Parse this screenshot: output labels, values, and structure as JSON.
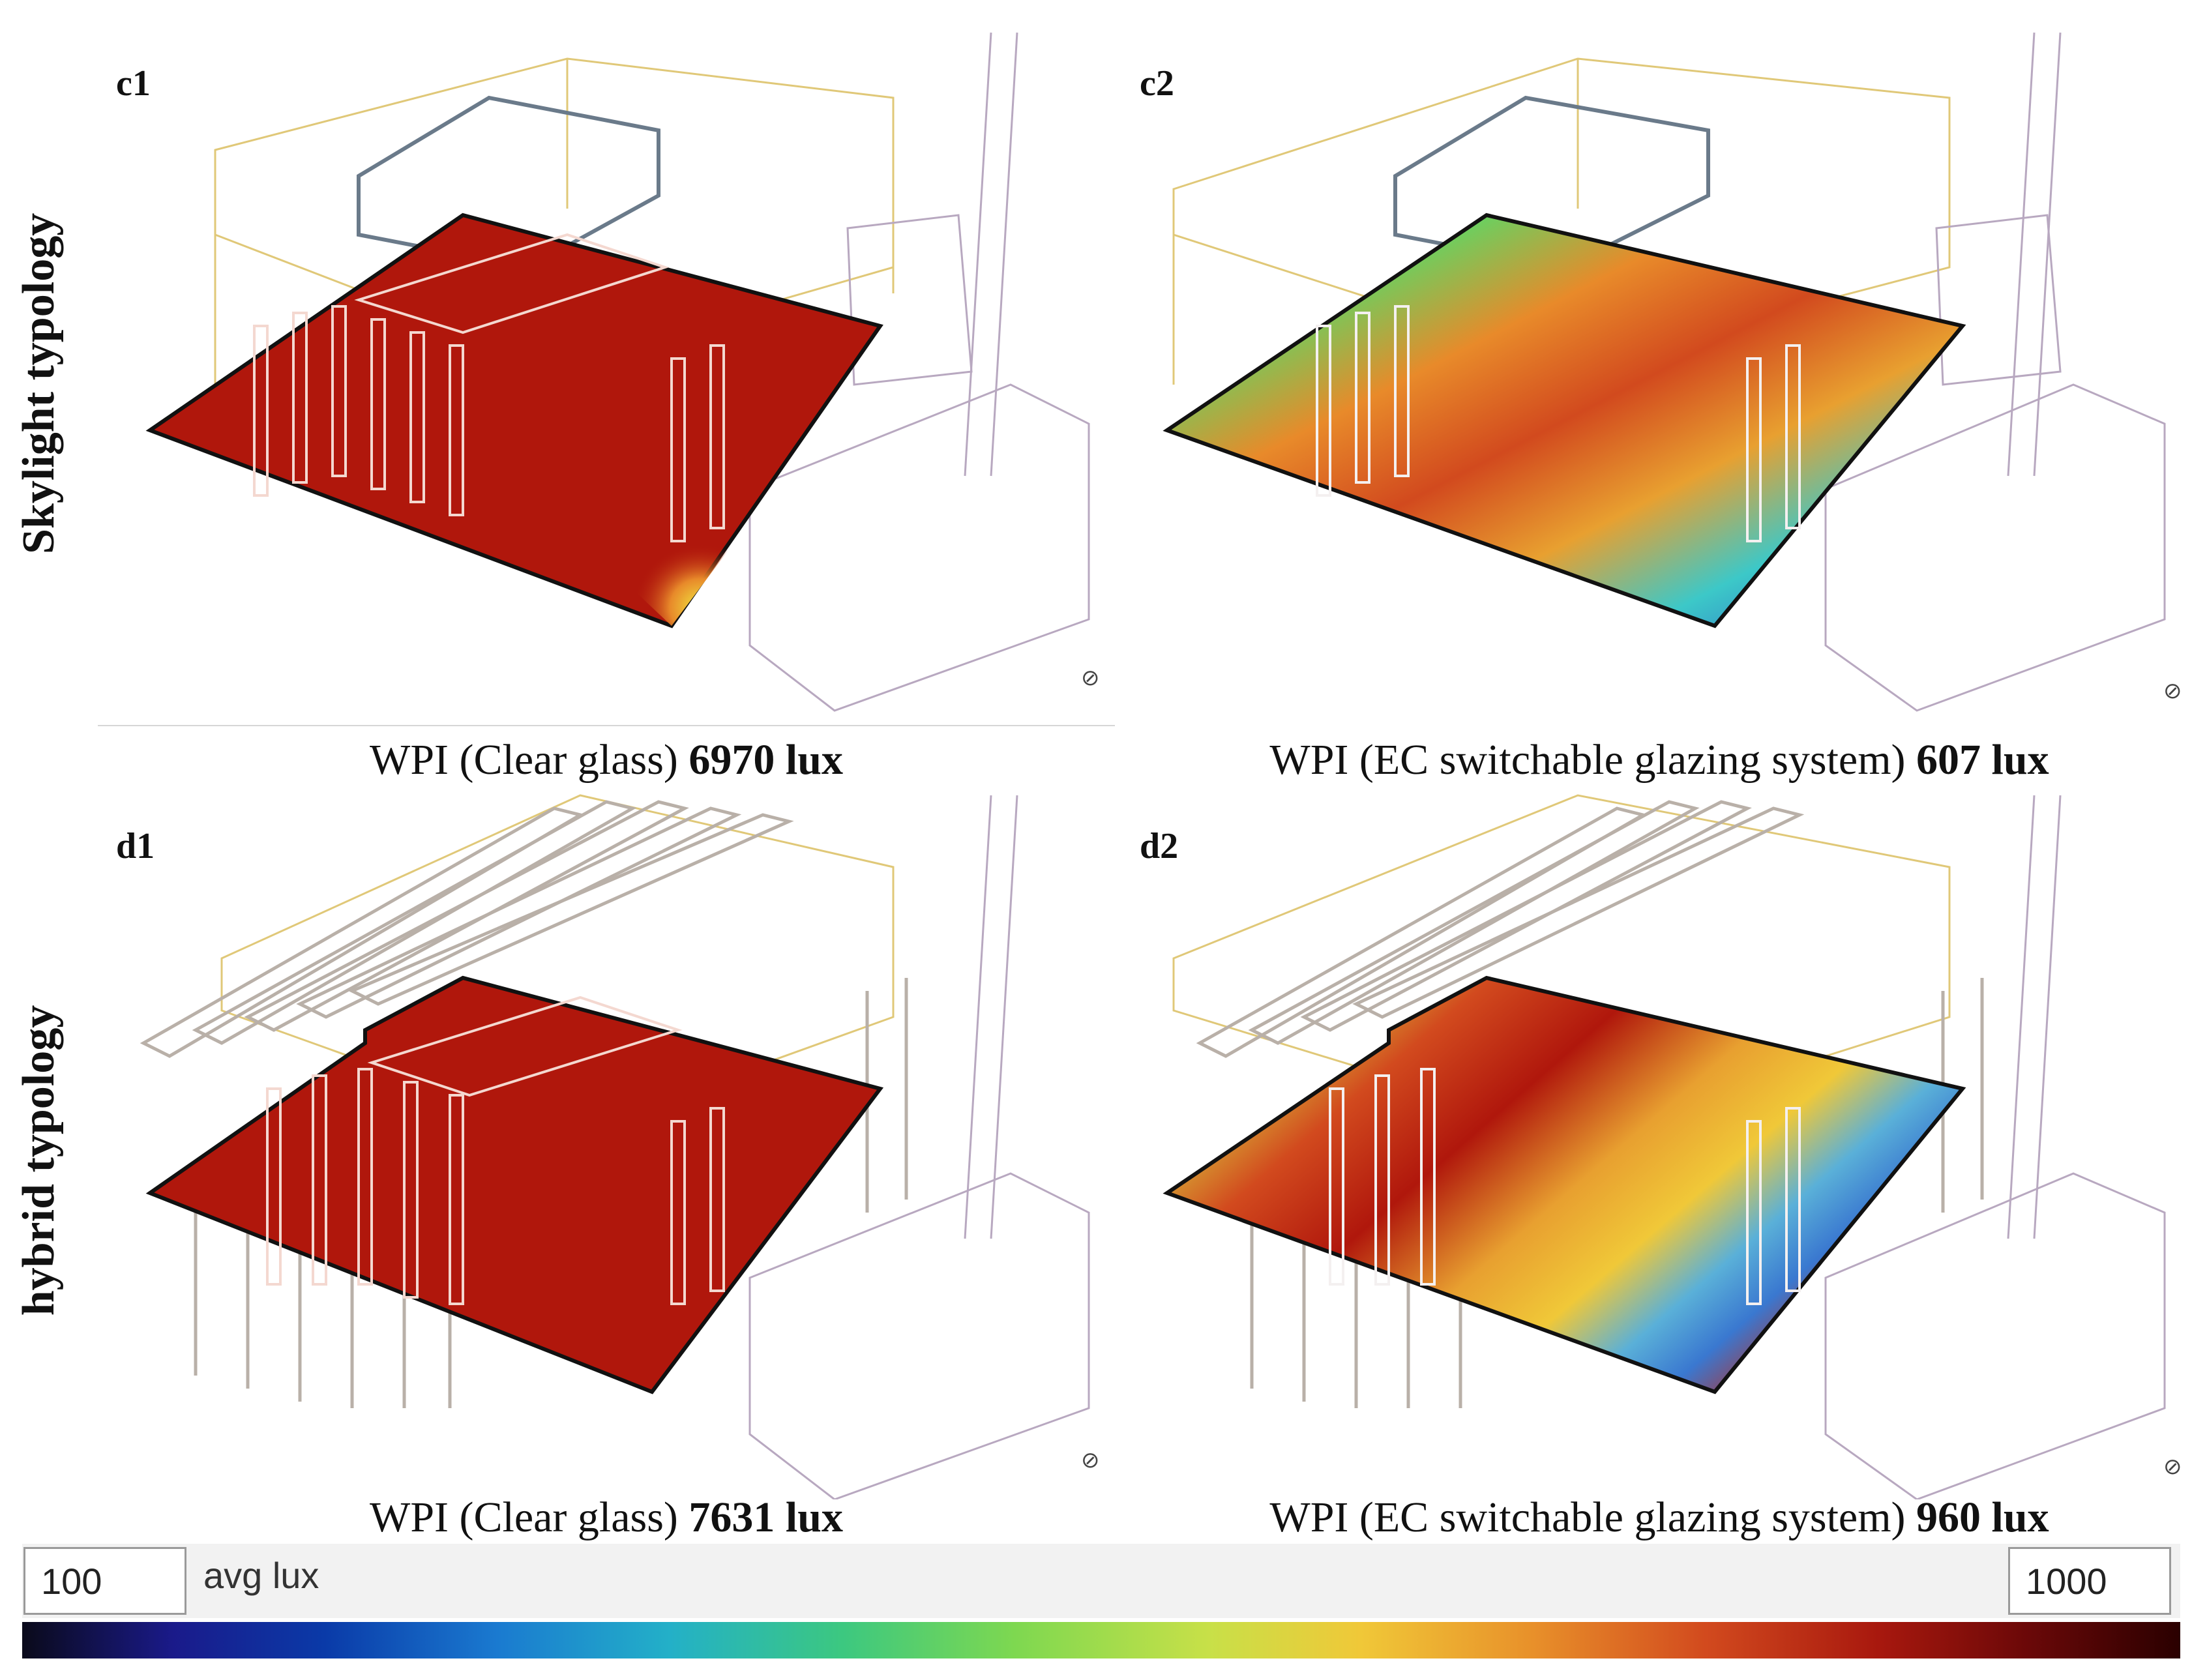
{
  "panels": [
    {
      "id": "c1",
      "label": "c1",
      "caption_prefix": "WPI (Clear glass) ",
      "caption_value": "6970 lux",
      "type": "clear"
    },
    {
      "id": "c2",
      "label": "c2",
      "caption_prefix": "WPI (EC switchable glazing system) ",
      "caption_value": "607 lux",
      "type": "ec"
    },
    {
      "id": "d1",
      "label": "d1",
      "caption_prefix": "WPI (Clear glass) ",
      "caption_value": "7631 lux",
      "type": "clear"
    },
    {
      "id": "d2",
      "label": "d2",
      "caption_prefix": "WPI (EC switchable glazing system) ",
      "caption_value": "960 lux",
      "type": "ec"
    }
  ],
  "row_labels": {
    "top": "Skylight typology",
    "bottom": "hybrid typology"
  },
  "scale": {
    "min": "100",
    "max": "1000",
    "label": "avg lux"
  },
  "colors": {
    "hot": "#b0170c",
    "cold": "#2a47c8",
    "mid": "#e8a030",
    "green": "#3cc880",
    "frame_yellow": "#e0c878",
    "frame_purple": "#b8a8c0"
  }
}
